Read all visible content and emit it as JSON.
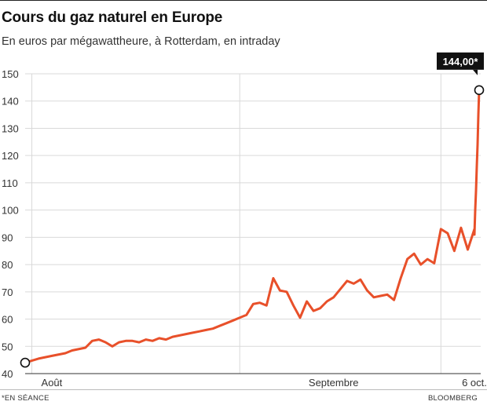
{
  "header": {
    "title": "Cours du gaz naturel en Europe",
    "subtitle": "En euros par mégawattheure, à Rotterdam, en intraday"
  },
  "footer": {
    "note": "*EN SÉANCE",
    "source": "BLOOMBERG"
  },
  "colors": {
    "line": "#e8502a",
    "grid": "#d9d9d9",
    "axis": "#333333",
    "callout_bg": "#111111",
    "callout_text": "#ffffff"
  },
  "chart_data": {
    "type": "line",
    "title": "Cours du gaz naturel en Europe",
    "subtitle": "En euros par mégawattheure, à Rotterdam, en intraday",
    "xlabel": "",
    "ylabel": "",
    "ylim": [
      40,
      150
    ],
    "yticks": [
      40,
      50,
      60,
      70,
      80,
      90,
      100,
      110,
      120,
      130,
      140,
      150
    ],
    "ytick_labels": [
      "40",
      "50",
      "60",
      "70",
      "80",
      "90",
      "100",
      "110",
      "120",
      "130",
      "140",
      "150"
    ],
    "xlim": [
      "2021-07-31",
      "2021-10-06"
    ],
    "xticks": [
      {
        "x": "2021-08-01",
        "label": "Août"
      },
      {
        "x": "2021-09-15",
        "label": "Septembre"
      },
      {
        "x": "2021-10-06",
        "label": "6 oct."
      }
    ],
    "vgrid": [
      "2021-08-01",
      "2021-09-01",
      "2021-10-01"
    ],
    "grid": true,
    "series": [
      {
        "points": [
          [
            "2021-07-31",
            44.0
          ],
          [
            "2021-08-02",
            45.5
          ],
          [
            "2021-08-04",
            46.5
          ],
          [
            "2021-08-06",
            47.5
          ],
          [
            "2021-08-07",
            48.5
          ],
          [
            "2021-08-09",
            49.5
          ],
          [
            "2021-08-10",
            52.0
          ],
          [
            "2021-08-11",
            52.5
          ],
          [
            "2021-08-12",
            51.5
          ],
          [
            "2021-08-13",
            50.0
          ],
          [
            "2021-08-14",
            51.5
          ],
          [
            "2021-08-15",
            52.0
          ],
          [
            "2021-08-16",
            52.0
          ],
          [
            "2021-08-17",
            51.5
          ],
          [
            "2021-08-18",
            52.5
          ],
          [
            "2021-08-19",
            52.0
          ],
          [
            "2021-08-20",
            53.0
          ],
          [
            "2021-08-21",
            52.5
          ],
          [
            "2021-08-22",
            53.5
          ],
          [
            "2021-08-23",
            54.0
          ],
          [
            "2021-08-24",
            54.5
          ],
          [
            "2021-08-25",
            55.0
          ],
          [
            "2021-08-26",
            55.5
          ],
          [
            "2021-08-27",
            56.0
          ],
          [
            "2021-08-28",
            56.5
          ],
          [
            "2021-08-29",
            57.5
          ],
          [
            "2021-08-30",
            58.5
          ],
          [
            "2021-08-31",
            59.5
          ],
          [
            "2021-09-01",
            60.5
          ],
          [
            "2021-09-02",
            61.5
          ],
          [
            "2021-09-03",
            65.5
          ],
          [
            "2021-09-04",
            66.0
          ],
          [
            "2021-09-05",
            65.0
          ],
          [
            "2021-09-06",
            75.0
          ],
          [
            "2021-09-07",
            70.5
          ],
          [
            "2021-09-08",
            70.0
          ],
          [
            "2021-09-09",
            65.0
          ],
          [
            "2021-09-10",
            60.5
          ],
          [
            "2021-09-11",
            66.5
          ],
          [
            "2021-09-12",
            63.0
          ],
          [
            "2021-09-13",
            64.0
          ],
          [
            "2021-09-14",
            66.5
          ],
          [
            "2021-09-15",
            68.0
          ],
          [
            "2021-09-16",
            71.0
          ],
          [
            "2021-09-17",
            74.0
          ],
          [
            "2021-09-18",
            73.0
          ],
          [
            "2021-09-19",
            74.5
          ],
          [
            "2021-09-20",
            70.5
          ],
          [
            "2021-09-21",
            68.0
          ],
          [
            "2021-09-22",
            68.5
          ],
          [
            "2021-09-23",
            69.0
          ],
          [
            "2021-09-24",
            67.0
          ],
          [
            "2021-09-25",
            75.0
          ],
          [
            "2021-09-26",
            82.0
          ],
          [
            "2021-09-27",
            84.0
          ],
          [
            "2021-09-28",
            80.0
          ],
          [
            "2021-09-29",
            82.0
          ],
          [
            "2021-09-30",
            80.5
          ],
          [
            "2021-10-01",
            93.0
          ],
          [
            "2021-10-02",
            91.5
          ],
          [
            "2021-10-03",
            85.0
          ],
          [
            "2021-10-04",
            93.5
          ],
          [
            "2021-10-05",
            85.5
          ],
          [
            "2021-10-06",
            93.0
          ]
        ]
      },
      {
        "points": [
          [
            "2021-10-06",
            91.0
          ],
          [
            "2021-10-06",
            100.0
          ],
          [
            "2021-10-06",
            107.0
          ],
          [
            "2021-10-06",
            116.0
          ],
          [
            "2021-10-06",
            124.0
          ],
          [
            "2021-10-06",
            135.0
          ],
          [
            "2021-10-06",
            144.0
          ]
        ],
        "intraday": true
      }
    ],
    "annotations": [
      {
        "label": "144,00*",
        "x": "2021-10-06",
        "y": 144.0,
        "style": "callout",
        "marker": "circle"
      },
      {
        "x": "2021-07-31",
        "y": 44.0,
        "marker": "circle"
      }
    ]
  }
}
